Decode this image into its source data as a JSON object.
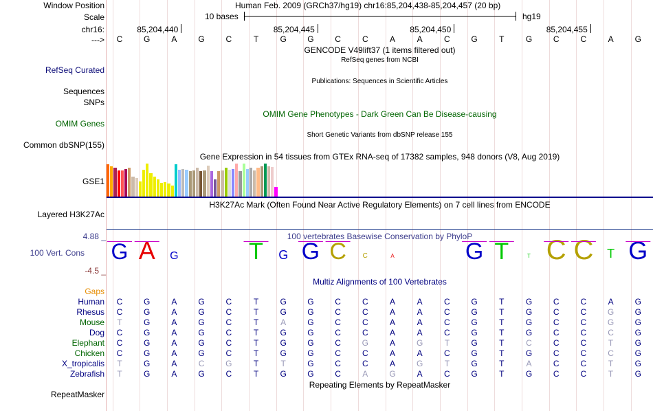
{
  "header": {
    "window_position_label": "Window Position",
    "window_position_value": "Human Feb. 2009 (GRCh37/hg19)   chr16:85,204,438-85,204,457 (20 bp)",
    "scale_label": "Scale",
    "scale_text": "10 bases",
    "scale_assembly": "hg19",
    "chrom_label": "chr16:",
    "positions": [
      "85,204,440",
      "85,204,445",
      "85,204,450",
      "85,204,455"
    ],
    "strand_label": "--->"
  },
  "reference_bases": [
    "C",
    "G",
    "A",
    "G",
    "C",
    "T",
    "G",
    "G",
    "C",
    "C",
    "A",
    "A",
    "C",
    "G",
    "T",
    "G",
    "C",
    "C",
    "A",
    "G"
  ],
  "tracks": {
    "gencode_title": "GENCODE V49lift37 (1 items filtered out)",
    "refseq_subtitle": "RefSeq genes from NCBI",
    "refseq_label": "RefSeq Curated",
    "publications_title": "Publications: Sequences in Scientific Articles",
    "sequences_label": "Sequences",
    "snps_label": "SNPs",
    "omim_title": "OMIM Gene Phenotypes - Dark Green Can Be Disease-causing",
    "omim_label": "OMIM Genes",
    "dbsnp_title": "Short Genetic Variants from dbSNP release 155",
    "dbsnp_label": "Common dbSNP(155)",
    "gtex_title": "Gene Expression in 54 tissues from GTEx RNA-seq of 17382 samples, 948 donors (V8, Aug 2019)",
    "gtex_label": "GSE1",
    "h3k27_title": "H3K27Ac Mark (Often Found Near Active Regulatory Elements) on 7 cell lines from ENCODE",
    "h3k27_label": "Layered H3K27Ac",
    "phylop_title": "100 vertebrates Basewise Conservation by PhyloP",
    "phylop_label": "100 Vert. Cons",
    "phylop_max": "4.88 _",
    "phylop_min": "-4.5 _",
    "multiz_title": "Multiz Alignments of 100 Vertebrates",
    "gaps_label": "Gaps",
    "repeat_title": "Repeating Elements by RepeatMasker",
    "repeat_label": "RepeatMasker"
  },
  "gtex_bars": [
    {
      "color": "#ff6600",
      "value": 0.95
    },
    {
      "color": "#ffaa00",
      "value": 0.9
    },
    {
      "color": "#aa2255",
      "value": 0.85
    },
    {
      "color": "#ff0000",
      "value": 0.78
    },
    {
      "color": "#ff5555",
      "value": 0.78
    },
    {
      "color": "#aa0055",
      "value": 0.82
    },
    {
      "color": "#cc9966",
      "value": 0.85
    },
    {
      "color": "#ccbbaa",
      "value": 0.6
    },
    {
      "color": "#ddccbb",
      "value": 0.55
    },
    {
      "color": "#eeee00",
      "value": 0.45
    },
    {
      "color": "#eeee00",
      "value": 0.8
    },
    {
      "color": "#eeee00",
      "value": 0.98
    },
    {
      "color": "#eeee00",
      "value": 0.7
    },
    {
      "color": "#eeee00",
      "value": 0.6
    },
    {
      "color": "#eeee00",
      "value": 0.5
    },
    {
      "color": "#eeee00",
      "value": 0.4
    },
    {
      "color": "#eeee00",
      "value": 0.42
    },
    {
      "color": "#eeee00",
      "value": 0.38
    },
    {
      "color": "#eeee00",
      "value": 0.32
    },
    {
      "color": "#00cccc",
      "value": 0.95
    },
    {
      "color": "#99bbff",
      "value": 0.8
    },
    {
      "color": "#bbbbbb",
      "value": 0.82
    },
    {
      "color": "#99ccff",
      "value": 0.8
    },
    {
      "color": "#aa9977",
      "value": 0.75
    },
    {
      "color": "#aa9977",
      "value": 0.78
    },
    {
      "color": "#ccbbaa",
      "value": 0.85
    },
    {
      "color": "#775533",
      "value": 0.75
    },
    {
      "color": "#aa9977",
      "value": 0.78
    },
    {
      "color": "#ddccbb",
      "value": 0.92
    },
    {
      "color": "#aa66dd",
      "value": 0.75
    },
    {
      "color": "#775599",
      "value": 0.5
    },
    {
      "color": "#cc9966",
      "value": 0.75
    },
    {
      "color": "#ccbbaa",
      "value": 0.78
    },
    {
      "color": "#99cc00",
      "value": 0.85
    },
    {
      "color": "#dddddd",
      "value": 0.8
    },
    {
      "color": "#8888ff",
      "value": 0.82
    },
    {
      "color": "#ffaaaa",
      "value": 0.98
    },
    {
      "color": "#999999",
      "value": 0.75
    },
    {
      "color": "#aaff99",
      "value": 0.97
    },
    {
      "color": "#99ccff",
      "value": 0.82
    },
    {
      "color": "#aaaaaa",
      "value": 0.85
    },
    {
      "color": "#ccbbaa",
      "value": 0.78
    },
    {
      "color": "#ffbb88",
      "value": 0.85
    },
    {
      "color": "#aa9977",
      "value": 0.9
    },
    {
      "color": "#009955",
      "value": 0.98
    },
    {
      "color": "#ccbbaa",
      "value": 0.9
    },
    {
      "color": "#eecccc",
      "value": 0.88
    },
    {
      "color": "#ff00ff",
      "value": 0.28
    }
  ],
  "phylop_glyphs": [
    "G",
    "A",
    "G",
    "",
    "",
    "T",
    "G",
    "G",
    "C",
    "c",
    "a",
    "",
    "",
    "G",
    "T",
    "t",
    "C",
    "C",
    "t",
    "G"
  ],
  "species": [
    {
      "name": "Human",
      "color": "#000080",
      "bases": [
        "C",
        "G",
        "A",
        "G",
        "C",
        "T",
        "G",
        "G",
        "C",
        "C",
        "A",
        "A",
        "C",
        "G",
        "T",
        "G",
        "C",
        "C",
        "A",
        "G"
      ]
    },
    {
      "name": "Rhesus",
      "color": "#000080",
      "bases": [
        "C",
        "G",
        "A",
        "G",
        "C",
        "T",
        "G",
        "G",
        "C",
        "C",
        "A",
        "A",
        "C",
        "G",
        "T",
        "G",
        "C",
        "C",
        "G",
        "G"
      ]
    },
    {
      "name": "Mouse",
      "color": "#006400",
      "bases": [
        "T",
        "G",
        "A",
        "G",
        "C",
        "T",
        "A",
        "G",
        "C",
        "C",
        "A",
        "A",
        "C",
        "G",
        "T",
        "G",
        "C",
        "C",
        "G",
        "G"
      ]
    },
    {
      "name": "Dog",
      "color": "#000080",
      "bases": [
        "C",
        "G",
        "A",
        "G",
        "C",
        "T",
        "G",
        "G",
        "C",
        "C",
        "A",
        "A",
        "C",
        "G",
        "T",
        "G",
        "C",
        "C",
        "C",
        "G"
      ]
    },
    {
      "name": "Elephant",
      "color": "#006400",
      "bases": [
        "C",
        "G",
        "A",
        "G",
        "C",
        "T",
        "G",
        "G",
        "C",
        "G",
        "A",
        "G",
        "T",
        "G",
        "T",
        "C",
        "C",
        "C",
        "T",
        "G"
      ]
    },
    {
      "name": "Chicken",
      "color": "#006400",
      "bases": [
        "C",
        "G",
        "A",
        "G",
        "C",
        "T",
        "G",
        "G",
        "C",
        "C",
        "A",
        "A",
        "C",
        "G",
        "T",
        "G",
        "C",
        "C",
        "C",
        "G"
      ]
    },
    {
      "name": "X_tropicalis",
      "color": "#000080",
      "bases": [
        "T",
        "G",
        "A",
        "C",
        "G",
        "T",
        "T",
        "G",
        "C",
        "C",
        "A",
        "G",
        "T",
        "G",
        "T",
        "A",
        "C",
        "C",
        "T",
        "G"
      ]
    },
    {
      "name": "Zebrafish",
      "color": "#000080",
      "bases": [
        "T",
        "G",
        "A",
        "G",
        "C",
        "T",
        "G",
        "G",
        "C",
        "A",
        "G",
        "A",
        "C",
        "G",
        "T",
        "G",
        "C",
        "C",
        "T",
        "G"
      ]
    }
  ],
  "colors": {
    "refseq_label": "#0c0c78",
    "omim_label": "#006400",
    "omim_title": "#006400",
    "phylop_label": "#3c3c8c",
    "phylop_neg": "#8c3c3c",
    "multiz_title": "#000080",
    "gaps_label": "#e68c00",
    "gtex_axis": "#00008c",
    "logo_G": "#0000c8",
    "logo_A": "#e60000",
    "logo_T": "#00c800",
    "logo_C": "#b4a000",
    "logo_mark": "#c800c8"
  }
}
